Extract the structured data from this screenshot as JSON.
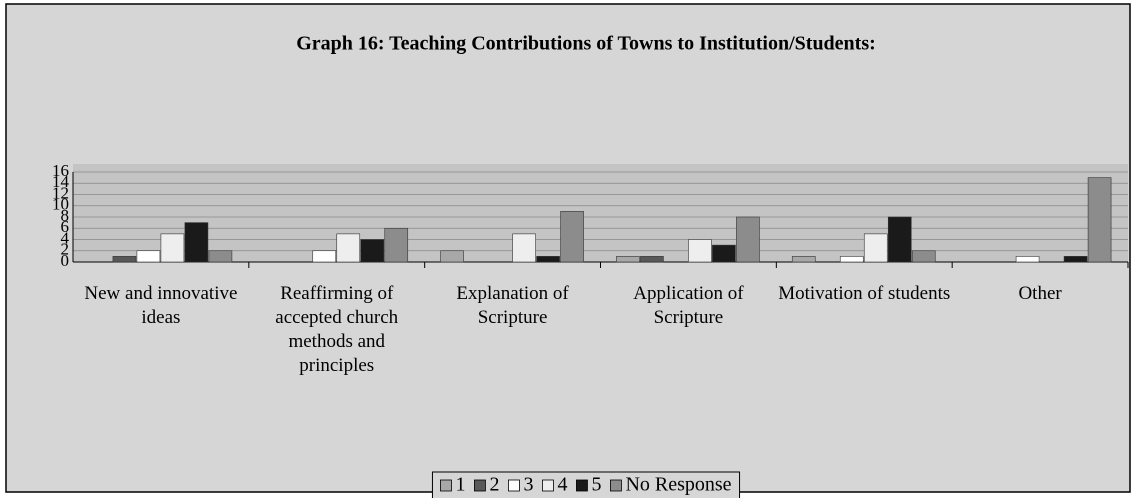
{
  "chart_data": {
    "type": "bar",
    "title": "Graph 16: Teaching Contributions of Towns to Institution/Students:",
    "categories": [
      "New and innovative ideas",
      "Reaffirming of accepted church methods and principles",
      "Explanation of Scripture",
      "Application of Scripture",
      "Motivation of students",
      "Other"
    ],
    "series": [
      {
        "name": "1",
        "color": "#a8a8a8",
        "values": [
          0,
          0,
          2,
          1,
          1,
          0
        ]
      },
      {
        "name": "2",
        "color": "#585858",
        "values": [
          1,
          0,
          0,
          1,
          0,
          0
        ]
      },
      {
        "name": "3",
        "color": "#ffffff",
        "values": [
          2,
          2,
          0,
          0,
          1,
          1
        ]
      },
      {
        "name": "4",
        "color": "#eeeeee",
        "values": [
          5,
          5,
          5,
          4,
          5,
          0
        ]
      },
      {
        "name": "5",
        "color": "#1a1a1a",
        "values": [
          7,
          4,
          1,
          3,
          8,
          1
        ]
      },
      {
        "name": "No Response",
        "color": "#8c8c8c",
        "values": [
          2,
          6,
          9,
          8,
          2,
          15
        ]
      }
    ],
    "ylim": [
      0,
      16
    ],
    "yticks": [
      0,
      2,
      4,
      6,
      8,
      10,
      12,
      14,
      16
    ],
    "grid": true,
    "legend": "bottom"
  }
}
